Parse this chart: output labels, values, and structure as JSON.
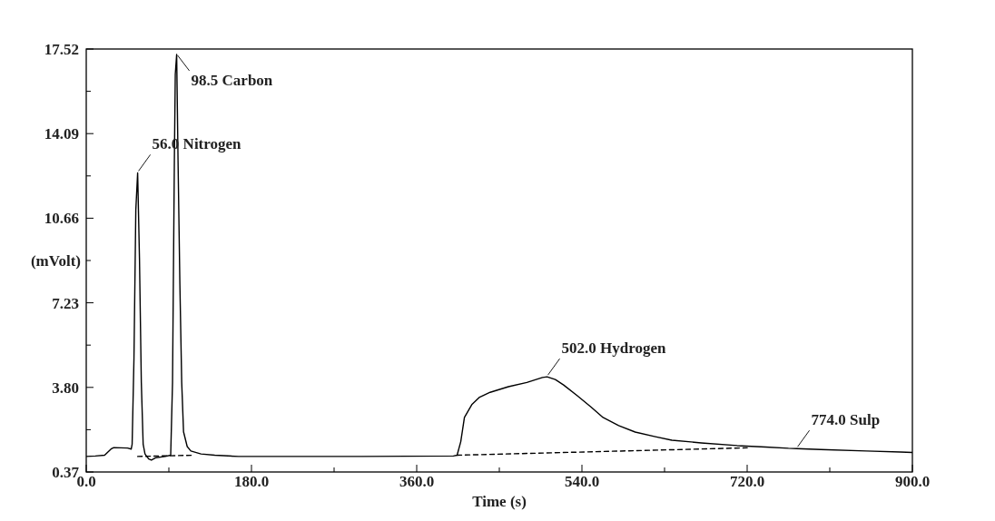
{
  "chart_data": {
    "type": "line",
    "xlabel": "Time (s)",
    "ylabel": "(mVolt)",
    "xlim": [
      0,
      900
    ],
    "ylim": [
      0.37,
      17.52
    ],
    "xticks": [
      {
        "value": 0,
        "label": "0.0"
      },
      {
        "value": 90,
        "label": null
      },
      {
        "value": 180,
        "label": "180.0"
      },
      {
        "value": 270,
        "label": null
      },
      {
        "value": 360,
        "label": "360.0"
      },
      {
        "value": 450,
        "label": null
      },
      {
        "value": 540,
        "label": "540.0"
      },
      {
        "value": 630,
        "label": null
      },
      {
        "value": 720,
        "label": "720.0"
      },
      {
        "value": 810,
        "label": null
      },
      {
        "value": 900,
        "label": "900.0"
      }
    ],
    "yticks": [
      0.37,
      {
        "value": 2.085,
        "label": null
      },
      {
        "value": 3.8,
        "label": "3.80"
      },
      {
        "value": 5.515,
        "label": null
      },
      7.23,
      {
        "value": 8.945,
        "label": null
      },
      10.66,
      {
        "value": 12.375,
        "label": null
      },
      14.09,
      {
        "value": 15.805,
        "label": null
      },
      17.52
    ],
    "grid": false,
    "series": [
      {
        "color": "#000000",
        "line_style": "solid",
        "x": [
          0,
          10,
          20,
          27,
          30,
          45,
          49,
          50,
          52,
          54,
          56,
          58,
          60,
          62,
          64,
          68,
          71,
          76,
          86,
          92,
          94,
          96,
          97,
          98.5,
          100,
          102,
          104,
          106,
          110,
          114,
          125,
          140,
          166,
          200,
          300,
          400,
          404,
          408,
          412,
          420,
          428,
          440,
          460,
          480,
          497,
          502,
          511,
          520,
          535,
          550,
          563,
          580,
          598,
          620,
          638,
          670,
          709,
          740,
          765,
          774,
          800,
          850,
          887,
          900
        ],
        "values": [
          1.0,
          1.02,
          1.05,
          1.3,
          1.36,
          1.34,
          1.3,
          1.5,
          5,
          11,
          12.5,
          9,
          4,
          1.5,
          1.1,
          0.9,
          0.85,
          0.95,
          1.0,
          1.05,
          4,
          13,
          16.5,
          17.3,
          13,
          8,
          4,
          2,
          1.4,
          1.22,
          1.1,
          1.05,
          1.0,
          1.0,
          1.0,
          1.02,
          1.05,
          1.6,
          2.58,
          3.1,
          3.39,
          3.6,
          3.83,
          4.0,
          4.2,
          4.23,
          4.12,
          3.9,
          3.46,
          3.0,
          2.58,
          2.25,
          1.99,
          1.8,
          1.66,
          1.55,
          1.44,
          1.38,
          1.33,
          1.32,
          1.28,
          1.22,
          1.18,
          1.16
        ]
      },
      {
        "color": "#000000",
        "line_style": "dashed",
        "x": [
          56,
          118
        ],
        "values": [
          1.0,
          1.05
        ]
      },
      {
        "color": "#000000",
        "line_style": "dashed",
        "x": [
          404,
          720
        ],
        "values": [
          1.05,
          1.35
        ]
      }
    ],
    "annotations": [
      {
        "text": "56.0 Nitrogen",
        "x": 56,
        "y": 12.5
      },
      {
        "text": "98.5 Carbon",
        "x": 98.5,
        "y": 17.3
      },
      {
        "text": "502.0 Hydrogen",
        "x": 502,
        "y": 4.23
      },
      {
        "text": "774.0 Sulp",
        "x": 774,
        "y": 1.32
      }
    ]
  }
}
